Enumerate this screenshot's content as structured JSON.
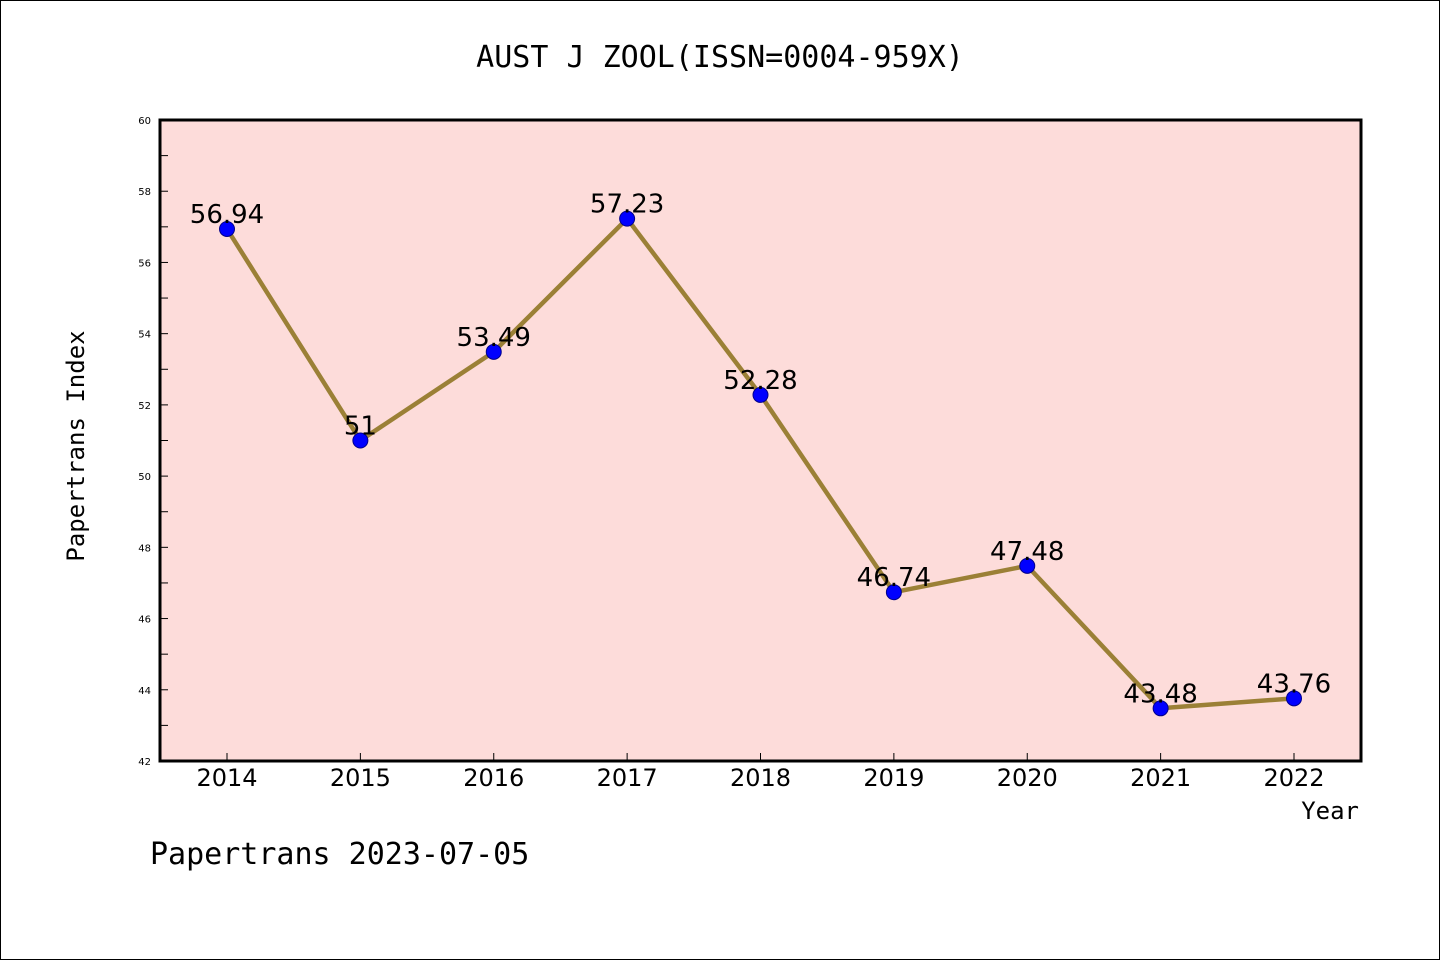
{
  "chart_data": {
    "type": "line",
    "title": "AUST J ZOOL(ISSN=0004-959X)",
    "xlabel": "Year",
    "ylabel": "Papertrans Index",
    "categories": [
      "2014",
      "2015",
      "2016",
      "2017",
      "2018",
      "2019",
      "2020",
      "2021",
      "2022"
    ],
    "series": [
      {
        "values": [
          56.94,
          51,
          53.49,
          57.23,
          52.28,
          46.74,
          47.48,
          43.48,
          43.76
        ],
        "labels": [
          "56.94",
          "51",
          "53.49",
          "57.23",
          "52.28",
          "46.74",
          "47.48",
          "43.48",
          "43.76"
        ]
      }
    ],
    "ylim": [
      42,
      60
    ],
    "yticks": [
      "42",
      "44",
      "46",
      "48",
      "50",
      "52",
      "54",
      "56",
      "58",
      "60"
    ],
    "grid": false,
    "colors": {
      "plot_background": "#FDDCDA",
      "line": "#9B8036",
      "marker": "#0000FF"
    }
  },
  "footer": "Papertrans 2023-07-05"
}
